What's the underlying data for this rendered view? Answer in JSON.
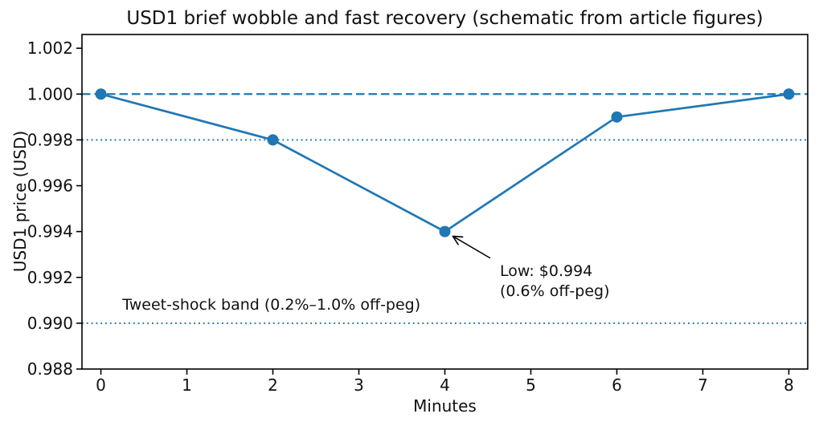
{
  "figure": {
    "background": "#ffffff"
  },
  "chart_data": {
    "type": "line",
    "title": "USD1 brief wobble and fast recovery (schematic from article figures)",
    "xlabel": "Minutes",
    "ylabel": "USD1 price (USD)",
    "x": [
      0,
      2,
      4,
      6,
      8
    ],
    "series": [
      {
        "name": "USD1 price",
        "values": [
          1.0,
          0.998,
          0.994,
          0.999,
          1.0
        ],
        "color": "#1f77b4",
        "marker": "circle",
        "marker_radius": 7,
        "line_width": 2.7
      }
    ],
    "xlim": [
      -0.22,
      8.22
    ],
    "ylim": [
      0.988,
      1.0026
    ],
    "xticks": [
      0,
      1,
      2,
      3,
      4,
      5,
      6,
      7,
      8
    ],
    "xtick_labels": [
      "0",
      "1",
      "2",
      "3",
      "4",
      "5",
      "6",
      "7",
      "8"
    ],
    "yticks": [
      0.988,
      0.99,
      0.992,
      0.994,
      0.996,
      0.998,
      1.0,
      1.002
    ],
    "ytick_labels": [
      "0.988",
      "0.990",
      "0.992",
      "0.994",
      "0.996",
      "0.998",
      "1.000",
      "1.002"
    ],
    "grid": false,
    "legend": "none",
    "reference_lines": [
      {
        "y": 1.0,
        "style": "dashed",
        "color": "#1f77b4",
        "width": 2.3
      },
      {
        "y": 0.998,
        "style": "dotted",
        "color": "#1f77b4",
        "width": 1.9
      },
      {
        "y": 0.99,
        "style": "dotted",
        "color": "#1f77b4",
        "width": 1.9
      }
    ],
    "annotation": {
      "line1": "Low: $0.994",
      "line2": "(0.6% off-peg)",
      "point_x": 4,
      "point_y": 0.994,
      "text_x": 4.64,
      "text_y": 0.9927,
      "arrow_color": "#000000"
    },
    "band_label": {
      "text": "Tweet-shock band (0.2%–1.0% off-peg)",
      "x": 0.25,
      "y": 0.9912
    },
    "axis_color": "#000000",
    "text_color": "#111111"
  }
}
